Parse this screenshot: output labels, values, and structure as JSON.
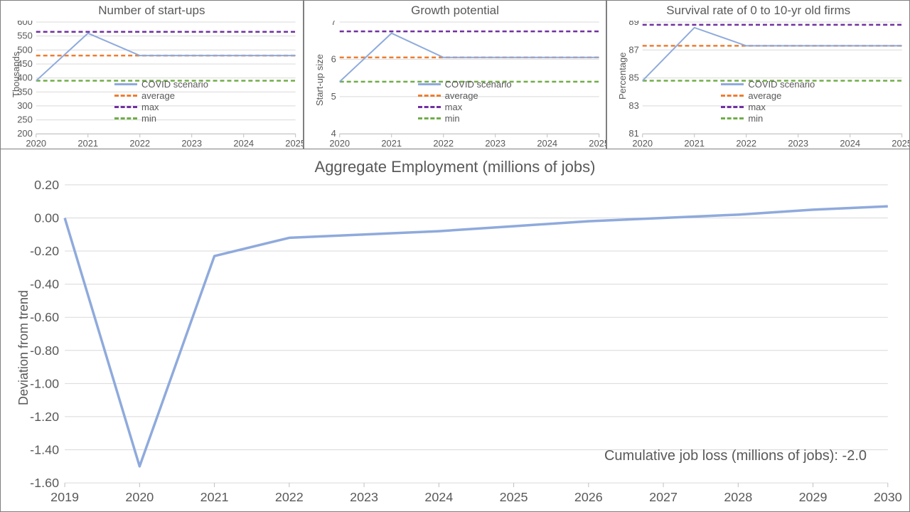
{
  "colors": {
    "covid": "#8faadc",
    "average": "#ed7d31",
    "max": "#7030a0",
    "min": "#70ad47",
    "grid": "#d9d9d9",
    "axis": "#bfbfbf",
    "text": "#595959",
    "border": "#7f7f7f"
  },
  "smallCharts": {
    "years": [
      2020,
      2021,
      2022,
      2023,
      2024,
      2025
    ],
    "xlim": [
      2020,
      2025
    ],
    "legend": {
      "labels": {
        "covid": "COVID scenario",
        "average": "average",
        "max": "max",
        "min": "min"
      },
      "swatch_width": 32
    },
    "line_width_covid": 2,
    "line_width_ref": 2.5,
    "dash": "6,4",
    "panels": [
      {
        "id": "startups",
        "title": "Number of start-ups",
        "ylabel": "Thousands",
        "ylim": [
          200,
          600
        ],
        "ytick_step": 50,
        "covid": [
          390,
          560,
          480,
          480,
          480,
          480
        ],
        "average": 480,
        "max": 565,
        "min": 390
      },
      {
        "id": "growth",
        "title": "Growth potential",
        "ylabel": "Start-up size",
        "ylim": [
          4,
          7
        ],
        "ytick_step": 1,
        "covid": [
          5.4,
          6.7,
          6.05,
          6.05,
          6.05,
          6.05
        ],
        "average": 6.05,
        "max": 6.75,
        "min": 5.4
      },
      {
        "id": "survival",
        "title": "Survival rate of 0 to 10-yr old firms",
        "ylabel": "Percentage",
        "ylim": [
          81,
          89
        ],
        "ytick_step": 2,
        "covid": [
          84.8,
          88.6,
          87.3,
          87.3,
          87.3,
          87.3
        ],
        "average": 87.3,
        "max": 88.8,
        "min": 84.8
      }
    ]
  },
  "bigChart": {
    "title": "Aggregate Employment (millions of jobs)",
    "ylabel": "Deviation from trend",
    "years": [
      2019,
      2020,
      2021,
      2022,
      2023,
      2024,
      2025,
      2026,
      2027,
      2028,
      2029,
      2030
    ],
    "xlim": [
      2019,
      2030
    ],
    "ylim": [
      -1.6,
      0.2
    ],
    "ytick_step": 0.2,
    "line_color": "#8faadc",
    "line_width": 3.5,
    "grid_color": "#d9d9d9",
    "values": [
      0.0,
      -1.5,
      -0.23,
      -0.12,
      -0.1,
      -0.08,
      -0.05,
      -0.02,
      0.0,
      0.02,
      0.05,
      0.07
    ],
    "annotation": "Cumulative job loss (millions of jobs): -2.0"
  }
}
